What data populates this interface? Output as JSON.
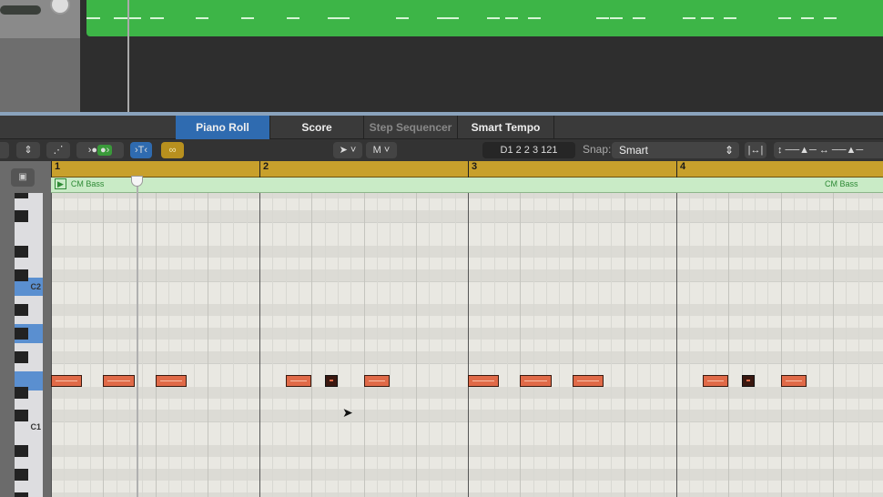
{
  "tabs": [
    {
      "label": "Piano Roll",
      "active": true
    },
    {
      "label": "Score"
    },
    {
      "label": "Step Sequencer",
      "dimmed": true
    },
    {
      "label": "Smart Tempo"
    }
  ],
  "toolbar": {
    "pointer_tool": "pointer-icon",
    "mode_label": "M",
    "position_readout": "D1   2 2 3 121",
    "snap_label": "Snap:",
    "snap_value": "Smart"
  },
  "ruler": {
    "bars": [
      "1",
      "2",
      "3",
      "4"
    ]
  },
  "region": {
    "name": "CM Bass",
    "name_end": "CM Bass",
    "color": "#3db547"
  },
  "keyboard": {
    "labels": [
      "C2",
      "C1"
    ]
  },
  "colors": {
    "note": "#e06a48",
    "selected_key": "#5a8fd0",
    "ruler": "#c8a02c",
    "active_tab": "#2f6bb0"
  },
  "notes": [
    {
      "start": "1 1",
      "len_beats": 0.6
    },
    {
      "start": "1 2",
      "len_beats": 0.6
    },
    {
      "start": "1 3",
      "len_beats": 0.6
    },
    {
      "start": "2 1.5",
      "len_beats": 0.5
    },
    {
      "start": "2 2.25",
      "len_beats": 0.25,
      "selected": true
    },
    {
      "start": "2 3",
      "len_beats": 0.5
    },
    {
      "start": "3 1",
      "len_beats": 0.6
    },
    {
      "start": "3 2",
      "len_beats": 0.6
    },
    {
      "start": "3 3",
      "len_beats": 0.6
    },
    {
      "start": "4 1.5",
      "len_beats": 0.5
    },
    {
      "start": "4 2.25",
      "len_beats": 0.25,
      "selected": true
    },
    {
      "start": "4 3",
      "len_beats": 0.5
    }
  ]
}
